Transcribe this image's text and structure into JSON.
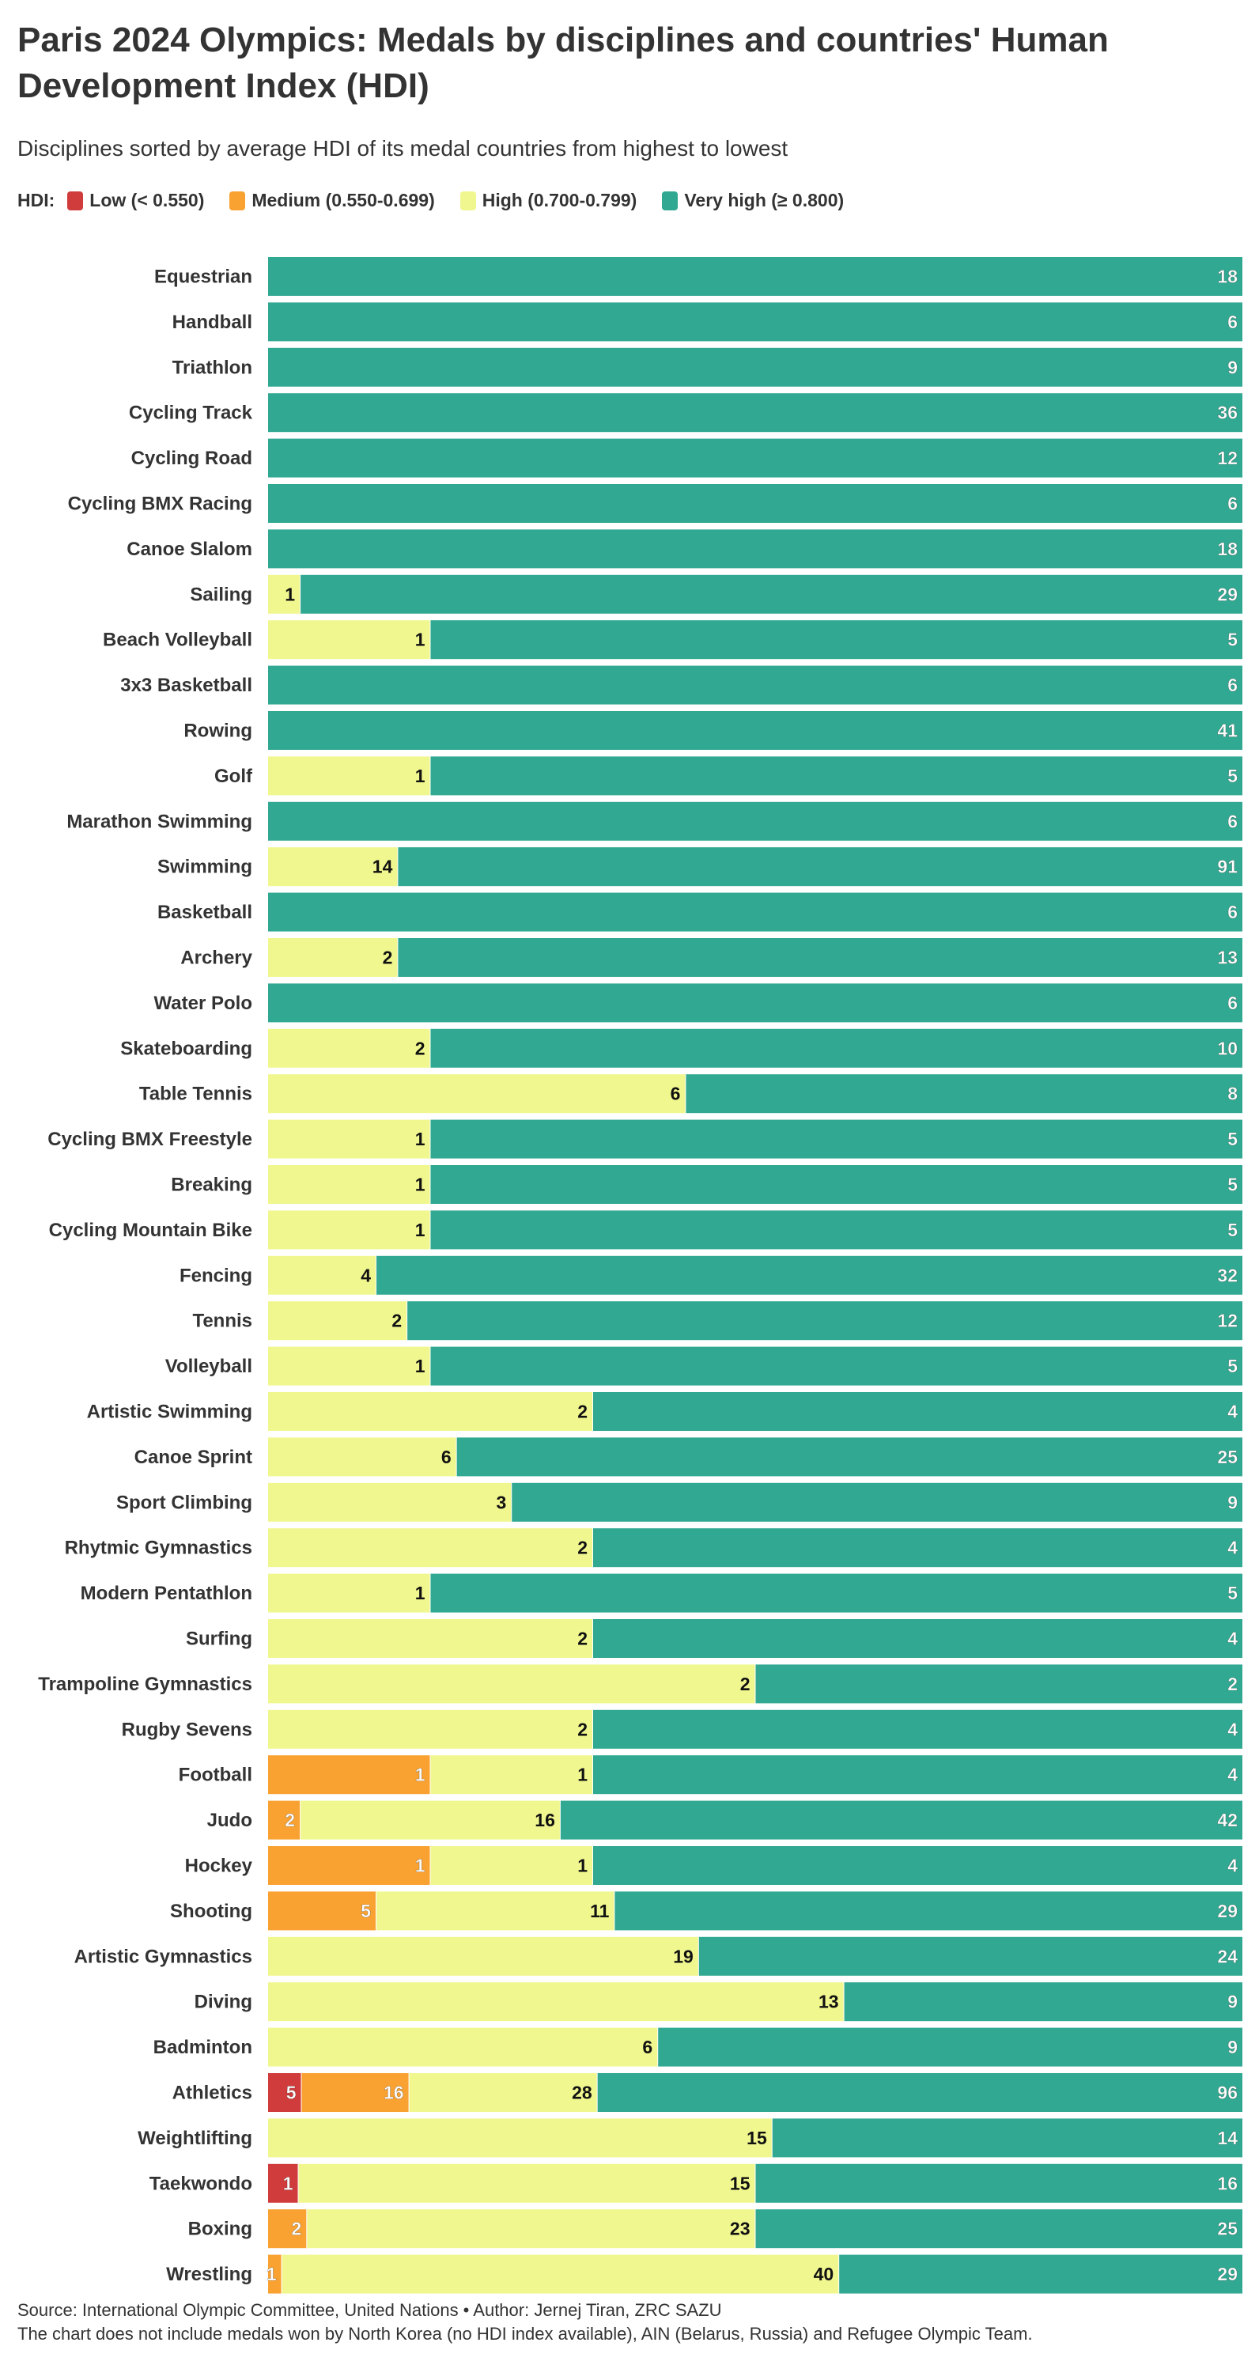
{
  "title": "Paris 2024 Olympics: Medals by disciplines and countries' Human Development Index (HDI)",
  "subtitle": "Disciplines sorted by average HDI of its medal countries from highest to lowest",
  "legend": {
    "label": "HDI:",
    "items": [
      {
        "label": "Low (< 0.550)",
        "color": "#d03b3b"
      },
      {
        "label": "Medium (0.550-0.699)",
        "color": "#f9a232"
      },
      {
        "label": "High (0.700-0.799)",
        "color": "#f1f78f"
      },
      {
        "label": "Very high (≥ 0.800)",
        "color": "#31a891"
      }
    ]
  },
  "footer": {
    "source": "Source: International Olympic Committee, United Nations • Author: Jernej Tiran, ZRC SAZU",
    "note": "The chart does not include medals won by North Korea (no HDI index available), AIN (Belarus, Russia) and Refugee Olympic Team."
  },
  "chart_data": {
    "type": "bar",
    "orientation": "horizontal",
    "stacking": "percent",
    "legend_position": "top-left",
    "grid": false,
    "categories": [
      "Equestrian",
      "Handball",
      "Triathlon",
      "Cycling Track",
      "Cycling Road",
      "Cycling BMX Racing",
      "Canoe Slalom",
      "Sailing",
      "Beach Volleyball",
      "3x3 Basketball",
      "Rowing",
      "Golf",
      "Marathon Swimming",
      "Swimming",
      "Basketball",
      "Archery",
      "Water Polo",
      "Skateboarding",
      "Table Tennis",
      "Cycling BMX Freestyle",
      "Breaking",
      "Cycling Mountain Bike",
      "Fencing",
      "Tennis",
      "Volleyball",
      "Artistic Swimming",
      "Canoe Sprint",
      "Sport Climbing",
      "Rhytmic Gymnastics",
      "Modern Pentathlon",
      "Surfing",
      "Trampoline Gymnastics",
      "Rugby Sevens",
      "Football",
      "Judo",
      "Hockey",
      "Shooting",
      "Artistic Gymnastics",
      "Diving",
      "Badminton",
      "Athletics",
      "Weightlifting",
      "Taekwondo",
      "Boxing",
      "Wrestling"
    ],
    "series": [
      {
        "name": "Low (< 0.550)",
        "color": "#d03b3b",
        "values": [
          0,
          0,
          0,
          0,
          0,
          0,
          0,
          0,
          0,
          0,
          0,
          0,
          0,
          0,
          0,
          0,
          0,
          0,
          0,
          0,
          0,
          0,
          0,
          0,
          0,
          0,
          0,
          0,
          0,
          0,
          0,
          0,
          0,
          0,
          0,
          0,
          0,
          0,
          0,
          0,
          5,
          0,
          1,
          0,
          0
        ]
      },
      {
        "name": "Medium (0.550-0.699)",
        "color": "#f9a232",
        "values": [
          0,
          0,
          0,
          0,
          0,
          0,
          0,
          0,
          0,
          0,
          0,
          0,
          0,
          0,
          0,
          0,
          0,
          0,
          0,
          0,
          0,
          0,
          0,
          0,
          0,
          0,
          0,
          0,
          0,
          0,
          0,
          0,
          0,
          1,
          2,
          1,
          5,
          0,
          0,
          0,
          16,
          0,
          0,
          2,
          1
        ]
      },
      {
        "name": "High (0.700-0.799)",
        "color": "#f1f78f",
        "values": [
          0,
          0,
          0,
          0,
          0,
          0,
          0,
          1,
          1,
          0,
          0,
          1,
          0,
          14,
          0,
          2,
          0,
          2,
          6,
          1,
          1,
          1,
          4,
          2,
          1,
          2,
          6,
          3,
          2,
          1,
          2,
          2,
          2,
          1,
          16,
          1,
          11,
          19,
          13,
          6,
          28,
          15,
          15,
          23,
          40
        ]
      },
      {
        "name": "Very high (≥ 0.800)",
        "color": "#31a891",
        "values": [
          18,
          6,
          9,
          36,
          12,
          6,
          18,
          29,
          5,
          6,
          41,
          5,
          6,
          91,
          6,
          13,
          6,
          10,
          8,
          5,
          5,
          5,
          32,
          12,
          5,
          4,
          25,
          9,
          4,
          5,
          4,
          2,
          4,
          4,
          42,
          4,
          29,
          24,
          9,
          9,
          96,
          14,
          16,
          25,
          29
        ]
      }
    ]
  }
}
